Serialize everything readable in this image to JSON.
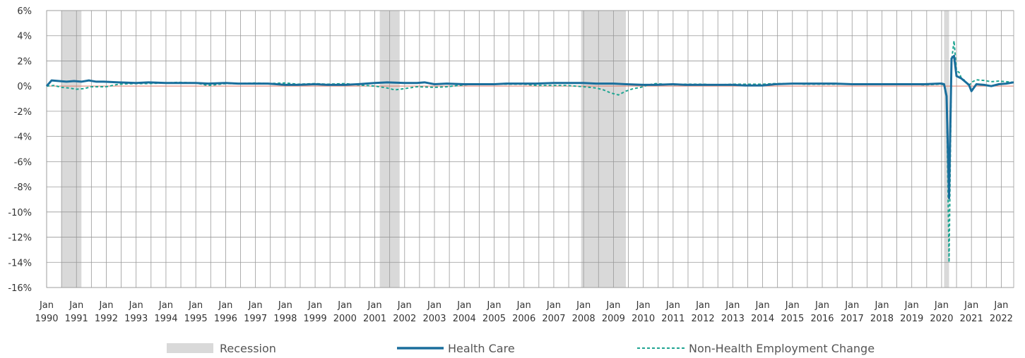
{
  "chart_data": {
    "type": "line",
    "title": "",
    "xlabel": "",
    "ylabel": "",
    "xlim": [
      "1990-01",
      "2022-06"
    ],
    "ylim": [
      -16,
      6
    ],
    "y_ticks": [
      6,
      4,
      2,
      0,
      -2,
      -4,
      -6,
      -8,
      -10,
      -12,
      -14,
      -16
    ],
    "y_tick_labels": [
      "6%",
      "4%",
      "2%",
      "0%",
      "-2%",
      "-4%",
      "-6%",
      "-8%",
      "-10%",
      "-12%",
      "-14%",
      "-16%"
    ],
    "x_ticks": [
      {
        "month": "Jan",
        "year": "1990"
      },
      {
        "month": "Jan",
        "year": "1991"
      },
      {
        "month": "Jan",
        "year": "1992"
      },
      {
        "month": "Jan",
        "year": "1993"
      },
      {
        "month": "Jan",
        "year": "1994"
      },
      {
        "month": "Jan",
        "year": "1995"
      },
      {
        "month": "Jan",
        "year": "1996"
      },
      {
        "month": "Jan",
        "year": "1997"
      },
      {
        "month": "Jan",
        "year": "1998"
      },
      {
        "month": "Jan",
        "year": "1999"
      },
      {
        "month": "Jan",
        "year": "2000"
      },
      {
        "month": "Jan",
        "year": "2001"
      },
      {
        "month": "Jan",
        "year": "2002"
      },
      {
        "month": "Jan",
        "year": "2003"
      },
      {
        "month": "Jan",
        "year": "2004"
      },
      {
        "month": "Jan",
        "year": "2005"
      },
      {
        "month": "Jan",
        "year": "2006"
      },
      {
        "month": "Jan",
        "year": "2007"
      },
      {
        "month": "Jan",
        "year": "2008"
      },
      {
        "month": "Jan",
        "year": "2009"
      },
      {
        "month": "Jan",
        "year": "2010"
      },
      {
        "month": "Jan",
        "year": "2011"
      },
      {
        "month": "Jan",
        "year": "2012"
      },
      {
        "month": "Jan",
        "year": "2013"
      },
      {
        "month": "Jan",
        "year": "2014"
      },
      {
        "month": "Jan",
        "year": "2015"
      },
      {
        "month": "Jan",
        "year": "2016"
      },
      {
        "month": "Jan",
        "year": "2017"
      },
      {
        "month": "Jan",
        "year": "2018"
      },
      {
        "month": "Jan",
        "year": "2019"
      },
      {
        "month": "Jan",
        "year": "2020"
      },
      {
        "month": "Jan",
        "year": "2021"
      },
      {
        "month": "Jan",
        "year": "2022"
      }
    ],
    "grid": true,
    "legend_position": "bottom",
    "recessions": [
      {
        "start": "1990-07",
        "end": "1991-03"
      },
      {
        "start": "2001-03",
        "end": "2001-11"
      },
      {
        "start": "2007-12",
        "end": "2009-06"
      },
      {
        "start": "2020-02",
        "end": "2020-04"
      }
    ],
    "legend": [
      {
        "key": "recession",
        "label": "Recession"
      },
      {
        "key": "health",
        "label": "Health Care"
      },
      {
        "key": "nonhealth",
        "label": "Non-Health Employment Change"
      }
    ],
    "series": [
      {
        "key": "health",
        "name": "Health Care",
        "style": "solid",
        "color": "#1a6e9c",
        "points": [
          [
            "1990-01",
            0.0
          ],
          [
            "1990-03",
            0.45
          ],
          [
            "1990-06",
            0.4
          ],
          [
            "1990-09",
            0.35
          ],
          [
            "1990-12",
            0.4
          ],
          [
            "1991-03",
            0.35
          ],
          [
            "1991-06",
            0.45
          ],
          [
            "1991-09",
            0.35
          ],
          [
            "1991-12",
            0.35
          ],
          [
            "1992-06",
            0.3
          ],
          [
            "1993-01",
            0.25
          ],
          [
            "1993-06",
            0.3
          ],
          [
            "1994-01",
            0.25
          ],
          [
            "1994-06",
            0.25
          ],
          [
            "1995-01",
            0.25
          ],
          [
            "1995-06",
            0.2
          ],
          [
            "1996-01",
            0.25
          ],
          [
            "1996-06",
            0.2
          ],
          [
            "1997-01",
            0.2
          ],
          [
            "1997-06",
            0.2
          ],
          [
            "1998-01",
            0.1
          ],
          [
            "1998-06",
            0.1
          ],
          [
            "1999-01",
            0.15
          ],
          [
            "1999-06",
            0.1
          ],
          [
            "2000-01",
            0.1
          ],
          [
            "2000-06",
            0.15
          ],
          [
            "2001-01",
            0.25
          ],
          [
            "2001-06",
            0.3
          ],
          [
            "2002-01",
            0.25
          ],
          [
            "2002-06",
            0.25
          ],
          [
            "2002-09",
            0.3
          ],
          [
            "2003-01",
            0.15
          ],
          [
            "2003-06",
            0.2
          ],
          [
            "2004-01",
            0.15
          ],
          [
            "2004-06",
            0.15
          ],
          [
            "2005-01",
            0.15
          ],
          [
            "2005-06",
            0.2
          ],
          [
            "2006-01",
            0.2
          ],
          [
            "2006-06",
            0.2
          ],
          [
            "2007-01",
            0.25
          ],
          [
            "2007-06",
            0.25
          ],
          [
            "2008-01",
            0.25
          ],
          [
            "2008-06",
            0.2
          ],
          [
            "2009-01",
            0.2
          ],
          [
            "2009-06",
            0.15
          ],
          [
            "2010-01",
            0.1
          ],
          [
            "2010-06",
            0.1
          ],
          [
            "2011-01",
            0.15
          ],
          [
            "2011-06",
            0.1
          ],
          [
            "2012-01",
            0.1
          ],
          [
            "2012-06",
            0.1
          ],
          [
            "2013-01",
            0.1
          ],
          [
            "2013-06",
            0.05
          ],
          [
            "2014-01",
            0.05
          ],
          [
            "2014-06",
            0.15
          ],
          [
            "2015-01",
            0.2
          ],
          [
            "2015-06",
            0.2
          ],
          [
            "2016-01",
            0.2
          ],
          [
            "2016-06",
            0.2
          ],
          [
            "2017-01",
            0.15
          ],
          [
            "2017-06",
            0.15
          ],
          [
            "2018-01",
            0.15
          ],
          [
            "2018-06",
            0.15
          ],
          [
            "2019-01",
            0.15
          ],
          [
            "2019-06",
            0.15
          ],
          [
            "2019-12",
            0.2
          ],
          [
            "2020-01",
            0.2
          ],
          [
            "2020-02",
            0.15
          ],
          [
            "2020-03",
            -0.8
          ],
          [
            "2020-04",
            -8.9
          ],
          [
            "2020-05",
            2.2
          ],
          [
            "2020-06",
            2.4
          ],
          [
            "2020-07",
            0.8
          ],
          [
            "2020-09",
            0.6
          ],
          [
            "2020-12",
            0.1
          ],
          [
            "2021-01",
            -0.4
          ],
          [
            "2021-03",
            0.15
          ],
          [
            "2021-06",
            0.1
          ],
          [
            "2021-09",
            0.0
          ],
          [
            "2021-12",
            0.15
          ],
          [
            "2022-03",
            0.2
          ],
          [
            "2022-06",
            0.3
          ]
        ]
      },
      {
        "key": "nonhealth",
        "name": "Non-Health Employment Change",
        "style": "dashed",
        "color": "#1fa592",
        "points": [
          [
            "1990-01",
            0.0
          ],
          [
            "1990-04",
            0.05
          ],
          [
            "1990-07",
            -0.1
          ],
          [
            "1990-10",
            -0.15
          ],
          [
            "1991-01",
            -0.25
          ],
          [
            "1991-04",
            -0.2
          ],
          [
            "1991-07",
            -0.05
          ],
          [
            "1991-10",
            -0.05
          ],
          [
            "1992-01",
            -0.05
          ],
          [
            "1992-06",
            0.15
          ],
          [
            "1993-01",
            0.2
          ],
          [
            "1993-06",
            0.2
          ],
          [
            "1994-01",
            0.25
          ],
          [
            "1994-06",
            0.3
          ],
          [
            "1995-01",
            0.25
          ],
          [
            "1995-06",
            0.05
          ],
          [
            "1996-01",
            0.2
          ],
          [
            "1996-06",
            0.2
          ],
          [
            "1997-01",
            0.25
          ],
          [
            "1997-06",
            0.2
          ],
          [
            "1998-01",
            0.25
          ],
          [
            "1998-06",
            0.15
          ],
          [
            "1999-01",
            0.2
          ],
          [
            "1999-06",
            0.15
          ],
          [
            "2000-01",
            0.2
          ],
          [
            "2000-06",
            0.1
          ],
          [
            "2001-01",
            0.0
          ],
          [
            "2001-06",
            -0.15
          ],
          [
            "2001-09",
            -0.3
          ],
          [
            "2002-01",
            -0.2
          ],
          [
            "2002-06",
            -0.05
          ],
          [
            "2003-01",
            -0.1
          ],
          [
            "2003-06",
            -0.05
          ],
          [
            "2004-01",
            0.1
          ],
          [
            "2004-06",
            0.15
          ],
          [
            "2005-01",
            0.15
          ],
          [
            "2005-06",
            0.15
          ],
          [
            "2006-01",
            0.15
          ],
          [
            "2006-06",
            0.05
          ],
          [
            "2007-01",
            0.05
          ],
          [
            "2007-06",
            0.05
          ],
          [
            "2008-01",
            -0.05
          ],
          [
            "2008-06",
            -0.15
          ],
          [
            "2008-09",
            -0.3
          ],
          [
            "2008-12",
            -0.55
          ],
          [
            "2009-03",
            -0.7
          ],
          [
            "2009-06",
            -0.4
          ],
          [
            "2009-09",
            -0.2
          ],
          [
            "2009-12",
            -0.1
          ],
          [
            "2010-03",
            0.1
          ],
          [
            "2010-06",
            0.2
          ],
          [
            "2011-01",
            0.1
          ],
          [
            "2011-06",
            0.15
          ],
          [
            "2012-01",
            0.15
          ],
          [
            "2012-06",
            0.1
          ],
          [
            "2013-01",
            0.15
          ],
          [
            "2013-06",
            0.15
          ],
          [
            "2014-01",
            0.15
          ],
          [
            "2014-06",
            0.2
          ],
          [
            "2015-01",
            0.2
          ],
          [
            "2015-06",
            0.15
          ],
          [
            "2016-01",
            0.15
          ],
          [
            "2016-06",
            0.15
          ],
          [
            "2017-01",
            0.15
          ],
          [
            "2017-06",
            0.15
          ],
          [
            "2018-01",
            0.15
          ],
          [
            "2018-06",
            0.15
          ],
          [
            "2019-01",
            0.15
          ],
          [
            "2019-06",
            0.1
          ],
          [
            "2019-12",
            0.15
          ],
          [
            "2020-01",
            0.15
          ],
          [
            "2020-02",
            0.1
          ],
          [
            "2020-03",
            -1.0
          ],
          [
            "2020-04",
            -14.0
          ],
          [
            "2020-05",
            2.0
          ],
          [
            "2020-06",
            3.6
          ],
          [
            "2020-07",
            1.2
          ],
          [
            "2020-08",
            1.1
          ],
          [
            "2020-09",
            0.6
          ],
          [
            "2020-10",
            0.5
          ],
          [
            "2020-12",
            0.0
          ],
          [
            "2021-01",
            0.3
          ],
          [
            "2021-03",
            0.5
          ],
          [
            "2021-06",
            0.45
          ],
          [
            "2021-09",
            0.35
          ],
          [
            "2021-12",
            0.4
          ],
          [
            "2022-03",
            0.35
          ],
          [
            "2022-06",
            0.3
          ]
        ]
      }
    ]
  }
}
